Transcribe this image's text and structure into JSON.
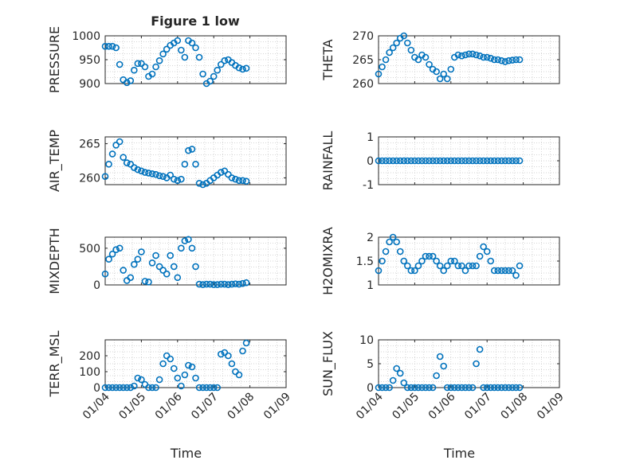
{
  "figure": {
    "title": "Figure 1 low",
    "marker_color": "#0072BD",
    "axis_color": "#262626",
    "grid_color": "#c8c8c8"
  },
  "chart_data": [
    {
      "type": "scatter",
      "id": "pressure",
      "ylabel": "PRESSURE",
      "ylim": [
        900,
        1000
      ],
      "yticks": [
        "900",
        "950",
        "1000"
      ],
      "xlim": [
        0,
        5
      ],
      "xticks": [],
      "title": "Figure 1 low",
      "x": [
        0,
        0.1,
        0.2,
        0.3,
        0.4,
        0.5,
        0.6,
        0.7,
        0.8,
        0.9,
        1.0,
        1.1,
        1.2,
        1.3,
        1.4,
        1.5,
        1.6,
        1.7,
        1.8,
        1.9,
        2.0,
        2.1,
        2.2,
        2.3,
        2.4,
        2.5,
        2.6,
        2.7,
        2.8,
        2.9,
        3.0,
        3.1,
        3.2,
        3.3,
        3.4,
        3.5,
        3.6,
        3.7,
        3.8,
        3.9
      ],
      "y": [
        978,
        978,
        978,
        975,
        940,
        908,
        902,
        906,
        928,
        942,
        942,
        935,
        915,
        920,
        935,
        948,
        962,
        972,
        980,
        985,
        990,
        970,
        955,
        990,
        985,
        975,
        955,
        920,
        900,
        905,
        915,
        928,
        940,
        948,
        950,
        944,
        938,
        933,
        930,
        932
      ]
    },
    {
      "type": "scatter",
      "id": "theta",
      "ylabel": "THETA",
      "ylim": [
        260,
        270
      ],
      "yticks": [
        "260",
        "265",
        "270"
      ],
      "xlim": [
        0,
        5
      ],
      "xticks": [],
      "x": [
        0,
        0.1,
        0.2,
        0.3,
        0.4,
        0.5,
        0.6,
        0.7,
        0.8,
        0.9,
        1.0,
        1.1,
        1.2,
        1.3,
        1.4,
        1.5,
        1.6,
        1.7,
        1.8,
        1.9,
        2.0,
        2.1,
        2.2,
        2.3,
        2.4,
        2.5,
        2.6,
        2.7,
        2.8,
        2.9,
        3.0,
        3.1,
        3.2,
        3.3,
        3.4,
        3.5,
        3.6,
        3.7,
        3.8,
        3.9
      ],
      "y": [
        262,
        263.5,
        265,
        266.5,
        267.5,
        268.5,
        269.5,
        270,
        268.5,
        267,
        265.5,
        265,
        266,
        265.5,
        264,
        263,
        262.5,
        261,
        262,
        261,
        263,
        265.5,
        266,
        265.8,
        266,
        266.2,
        266.2,
        266,
        265.8,
        265.5,
        265.5,
        265.3,
        265,
        265,
        264.8,
        264.6,
        264.8,
        264.9,
        265,
        265
      ]
    },
    {
      "type": "scatter",
      "id": "air_temp",
      "ylabel": "AIR_TEMP",
      "ylim": [
        259,
        266
      ],
      "yticks": [
        "260",
        "265"
      ],
      "xlim": [
        0,
        5
      ],
      "xticks": [],
      "x": [
        0,
        0.1,
        0.2,
        0.3,
        0.4,
        0.5,
        0.6,
        0.7,
        0.8,
        0.9,
        1.0,
        1.1,
        1.2,
        1.3,
        1.4,
        1.5,
        1.6,
        1.7,
        1.8,
        1.9,
        2.0,
        2.1,
        2.2,
        2.3,
        2.4,
        2.5,
        2.6,
        2.7,
        2.8,
        2.9,
        3.0,
        3.1,
        3.2,
        3.3,
        3.4,
        3.5,
        3.6,
        3.7,
        3.8,
        3.9
      ],
      "y": [
        260.2,
        262,
        263.5,
        264.8,
        265.3,
        263,
        262.2,
        262,
        261.5,
        261.2,
        261,
        260.8,
        260.7,
        260.6,
        260.5,
        260.3,
        260.2,
        260,
        260.4,
        259.8,
        259.6,
        259.8,
        262,
        264,
        264.2,
        262,
        259.2,
        259,
        259.2,
        259.6,
        260,
        260.4,
        260.8,
        261,
        260.5,
        260,
        259.8,
        259.6,
        259.6,
        259.5
      ]
    },
    {
      "type": "scatter",
      "id": "rainfall",
      "ylabel": "RAINFALL",
      "ylim": [
        -1,
        1
      ],
      "yticks": [
        "-1",
        "0",
        "1"
      ],
      "xlim": [
        0,
        5
      ],
      "xticks": [],
      "x": [
        0,
        0.1,
        0.2,
        0.3,
        0.4,
        0.5,
        0.6,
        0.7,
        0.8,
        0.9,
        1.0,
        1.1,
        1.2,
        1.3,
        1.4,
        1.5,
        1.6,
        1.7,
        1.8,
        1.9,
        2.0,
        2.1,
        2.2,
        2.3,
        2.4,
        2.5,
        2.6,
        2.7,
        2.8,
        2.9,
        3.0,
        3.1,
        3.2,
        3.3,
        3.4,
        3.5,
        3.6,
        3.7,
        3.8,
        3.9
      ],
      "y": [
        0,
        0,
        0,
        0,
        0,
        0,
        0,
        0,
        0,
        0,
        0,
        0,
        0,
        0,
        0,
        0,
        0,
        0,
        0,
        0,
        0,
        0,
        0,
        0,
        0,
        0,
        0,
        0,
        0,
        0,
        0,
        0,
        0,
        0,
        0,
        0,
        0,
        0,
        0,
        0
      ]
    },
    {
      "type": "scatter",
      "id": "mixdepth",
      "ylabel": "MIXDEPTH",
      "ylim": [
        0,
        650
      ],
      "yticks": [
        "0",
        "500"
      ],
      "xlim": [
        0,
        5
      ],
      "xticks": [],
      "x": [
        0,
        0.1,
        0.2,
        0.3,
        0.4,
        0.5,
        0.6,
        0.7,
        0.8,
        0.9,
        1.0,
        1.1,
        1.2,
        1.3,
        1.4,
        1.5,
        1.6,
        1.7,
        1.8,
        1.9,
        2.0,
        2.1,
        2.2,
        2.3,
        2.4,
        2.5,
        2.6,
        2.7,
        2.8,
        2.9,
        3.0,
        3.1,
        3.2,
        3.3,
        3.4,
        3.5,
        3.6,
        3.7,
        3.8,
        3.9
      ],
      "y": [
        150,
        350,
        420,
        480,
        500,
        200,
        60,
        100,
        280,
        350,
        450,
        50,
        40,
        300,
        400,
        250,
        200,
        150,
        400,
        250,
        100,
        500,
        600,
        620,
        500,
        250,
        10,
        5,
        10,
        10,
        5,
        5,
        10,
        10,
        5,
        10,
        15,
        10,
        20,
        30
      ]
    },
    {
      "type": "scatter",
      "id": "h2omixra",
      "ylabel": "H2OMIXRA",
      "ylim": [
        1,
        2
      ],
      "yticks": [
        "1",
        "1.5",
        "2"
      ],
      "xlim": [
        0,
        5
      ],
      "xticks": [],
      "x": [
        0,
        0.1,
        0.2,
        0.3,
        0.4,
        0.5,
        0.6,
        0.7,
        0.8,
        0.9,
        1.0,
        1.1,
        1.2,
        1.3,
        1.4,
        1.5,
        1.6,
        1.7,
        1.8,
        1.9,
        2.0,
        2.1,
        2.2,
        2.3,
        2.4,
        2.5,
        2.6,
        2.7,
        2.8,
        2.9,
        3.0,
        3.1,
        3.2,
        3.3,
        3.4,
        3.5,
        3.6,
        3.7,
        3.8,
        3.9
      ],
      "y": [
        1.3,
        1.5,
        1.7,
        1.9,
        2.0,
        1.9,
        1.7,
        1.5,
        1.4,
        1.3,
        1.3,
        1.4,
        1.5,
        1.6,
        1.6,
        1.6,
        1.5,
        1.4,
        1.3,
        1.4,
        1.5,
        1.5,
        1.4,
        1.4,
        1.3,
        1.4,
        1.4,
        1.4,
        1.6,
        1.8,
        1.7,
        1.5,
        1.3,
        1.3,
        1.3,
        1.3,
        1.3,
        1.3,
        1.2,
        1.4
      ]
    },
    {
      "type": "scatter",
      "id": "terr_msl",
      "ylabel": "TERR_MSL",
      "ylim": [
        0,
        300
      ],
      "yticks": [
        "0",
        "100",
        "200"
      ],
      "xlim": [
        0,
        5
      ],
      "xticks": [
        "01/04",
        "01/05",
        "01/06",
        "01/07",
        "01/08",
        "01/09"
      ],
      "xlabel": "Time",
      "x": [
        0,
        0.1,
        0.2,
        0.3,
        0.4,
        0.5,
        0.6,
        0.7,
        0.8,
        0.9,
        1.0,
        1.1,
        1.2,
        1.3,
        1.4,
        1.5,
        1.6,
        1.7,
        1.8,
        1.9,
        2.0,
        2.1,
        2.2,
        2.3,
        2.4,
        2.5,
        2.6,
        2.7,
        2.8,
        2.9,
        3.0,
        3.1,
        3.2,
        3.3,
        3.4,
        3.5,
        3.6,
        3.7,
        3.8,
        3.9
      ],
      "y": [
        0,
        0,
        0,
        0,
        0,
        0,
        0,
        0,
        10,
        60,
        50,
        20,
        0,
        0,
        0,
        50,
        150,
        200,
        180,
        120,
        60,
        10,
        80,
        140,
        130,
        60,
        0,
        0,
        0,
        0,
        0,
        0,
        210,
        220,
        200,
        150,
        100,
        80,
        230,
        280
      ]
    },
    {
      "type": "scatter",
      "id": "sun_flux",
      "ylabel": "SUN_FLUX",
      "ylim": [
        0,
        10
      ],
      "yticks": [
        "0",
        "5",
        "10"
      ],
      "xlim": [
        0,
        5
      ],
      "xticks": [
        "01/04",
        "01/05",
        "01/06",
        "01/07",
        "01/08",
        "01/09"
      ],
      "xlabel": "Time",
      "x": [
        0,
        0.1,
        0.2,
        0.3,
        0.4,
        0.5,
        0.6,
        0.7,
        0.8,
        0.9,
        1.0,
        1.1,
        1.2,
        1.3,
        1.4,
        1.5,
        1.6,
        1.7,
        1.8,
        1.9,
        2.0,
        2.1,
        2.2,
        2.3,
        2.4,
        2.5,
        2.6,
        2.7,
        2.8,
        2.9,
        3.0,
        3.1,
        3.2,
        3.3,
        3.4,
        3.5,
        3.6,
        3.7,
        3.8,
        3.9
      ],
      "y": [
        0,
        0,
        0,
        0,
        1.5,
        4.0,
        3.0,
        1.0,
        0,
        0,
        0,
        0,
        0,
        0,
        0,
        0,
        2.5,
        6.5,
        4.5,
        0,
        0,
        0,
        0,
        0,
        0,
        0,
        0,
        5.0,
        8.0,
        0,
        0,
        0,
        0,
        0,
        0,
        0,
        0,
        0,
        0,
        0
      ]
    }
  ]
}
